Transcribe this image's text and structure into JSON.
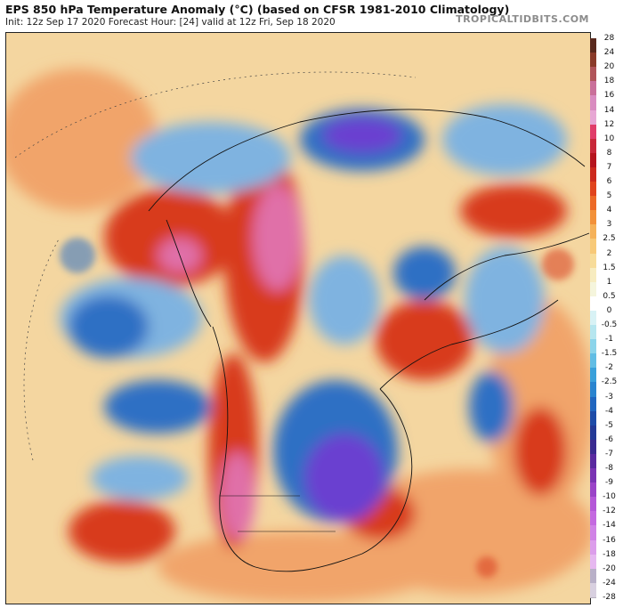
{
  "header": {
    "title": "EPS 850 hPa Temperature Anomaly (°C) (based on CFSR 1981-2010 Climatology)",
    "subtitle": "Init: 12z Sep 17 2020   Forecast Hour: [24]   valid at 12z Fri, Sep 18 2020",
    "source": "TROPICALTIDBITS.COM"
  },
  "map": {
    "projection": "north polar stereographic",
    "variable": "850 hPa temperature anomaly",
    "palette": {
      "strong_warm": "#d83a1e",
      "very_strong_warm": "#e06fa8",
      "mild_warm": "#f1a46a",
      "neutral": "#f4d6a0",
      "mild_cold": "#7fb3e0",
      "strong_cold": "#2f6fc4",
      "very_strong_cold": "#6a3fd0"
    }
  },
  "colorbar": {
    "unit": "°C",
    "labels": [
      "28",
      "24",
      "20",
      "18",
      "16",
      "14",
      "12",
      "10",
      "8",
      "7",
      "6",
      "5",
      "4",
      "3",
      "2.5",
      "2",
      "1.5",
      "1",
      "0.5",
      "0",
      "-0.5",
      "-1",
      "-1.5",
      "-2",
      "-2.5",
      "-3",
      "-4",
      "-5",
      "-6",
      "-7",
      "-8",
      "-9",
      "-10",
      "-12",
      "-14",
      "-16",
      "-18",
      "-20",
      "-24",
      "-28"
    ],
    "colors": [
      "#5a2a1e",
      "#8a3b2a",
      "#b0555a",
      "#c9709a",
      "#d98cc0",
      "#e7a7d4",
      "#e03d6a",
      "#c8283a",
      "#b5141e",
      "#cc2a1e",
      "#e0441e",
      "#ec6a28",
      "#f2913a",
      "#f5b25a",
      "#f7c978",
      "#f7dc9a",
      "#f7ecc0",
      "#f5f5dc",
      "#ffffff",
      "#d8f2f5",
      "#b6e6ef",
      "#8cd4ea",
      "#62bde4",
      "#3aa0da",
      "#2a84cf",
      "#2166bf",
      "#1e4ca8",
      "#243a96",
      "#3a2a90",
      "#5a2aa0",
      "#7a34b4",
      "#9a44c8",
      "#b458d8",
      "#c46ae0",
      "#d083e6",
      "#dc9eeb",
      "#e6b8f0",
      "#b8b0c8",
      "#d8d0e0"
    ]
  }
}
